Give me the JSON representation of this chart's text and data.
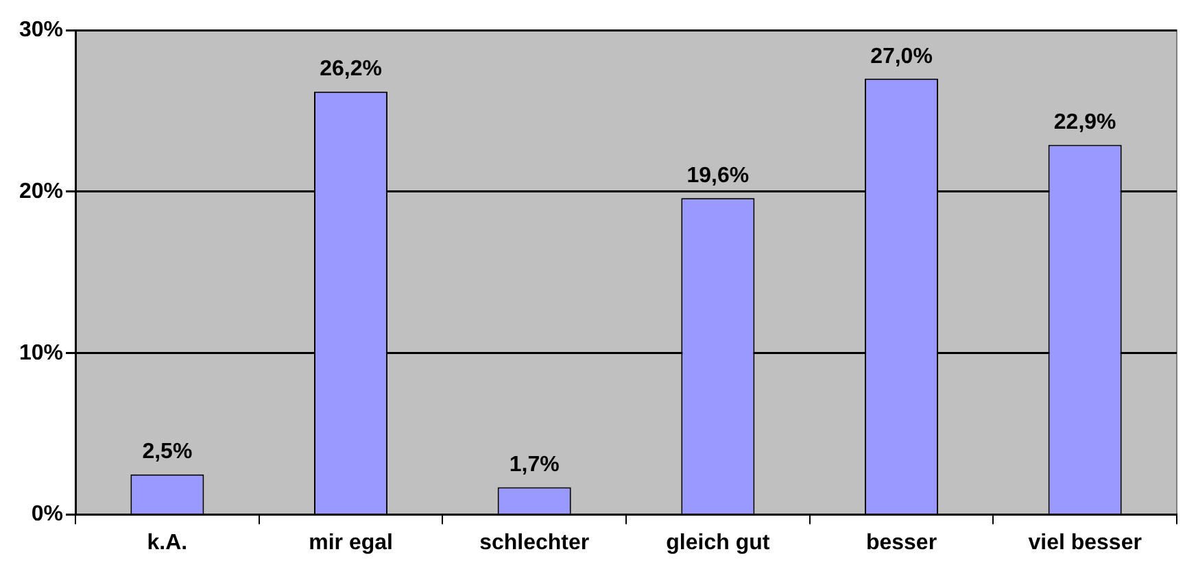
{
  "chart_data": {
    "type": "bar",
    "categories": [
      "k.A.",
      "mir egal",
      "schlechter",
      "gleich gut",
      "besser",
      "viel besser"
    ],
    "values": [
      2.5,
      26.2,
      1.7,
      19.6,
      27.0,
      22.9
    ],
    "value_labels": [
      "2,5%",
      "26,2%",
      "1,7%",
      "19,6%",
      "27,0%",
      "22,9%"
    ],
    "color": "#9999ff",
    "ylim": [
      0,
      30
    ],
    "yticks": [
      {
        "value": 0,
        "label": "0%"
      },
      {
        "value": 10,
        "label": "10%"
      },
      {
        "value": 20,
        "label": "20%"
      },
      {
        "value": 30,
        "label": "30%"
      }
    ],
    "grid": "y",
    "legend": false
  }
}
